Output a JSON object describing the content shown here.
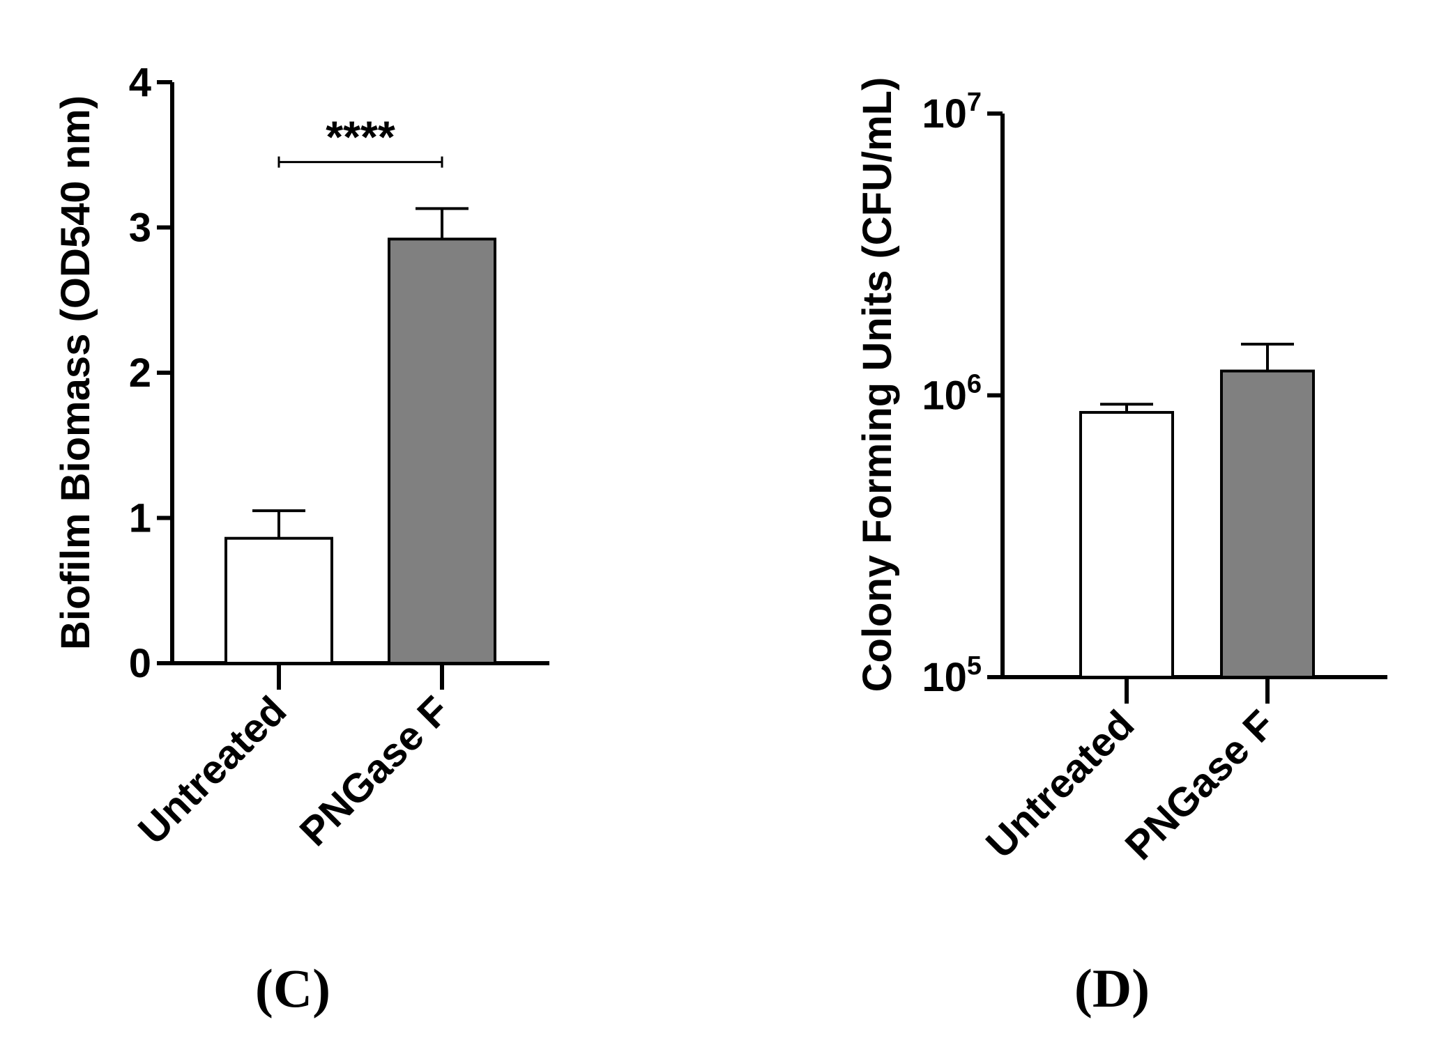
{
  "chart_data": [
    {
      "panel": "(C)",
      "type": "bar",
      "scale": "linear",
      "ylabel": "Biofilm  Biomass (OD540 nm)",
      "categories": [
        "Untreated",
        "PNGase F"
      ],
      "values": [
        0.86,
        2.92
      ],
      "errors": [
        0.19,
        0.21
      ],
      "colors": [
        "#ffffff",
        "#808080"
      ],
      "ylim": [
        0,
        4
      ],
      "yticks": [
        0,
        1,
        2,
        3,
        4
      ],
      "ytick_labels": [
        "0",
        "1",
        "2",
        "3",
        "4"
      ],
      "significance": {
        "label": "****",
        "between": [
          0,
          1
        ],
        "y": 3.45
      }
    },
    {
      "panel": "(D)",
      "type": "bar",
      "scale": "log",
      "ylabel": "Colony Forming Units (CFU/mL)",
      "categories": [
        "Untreated",
        "PNGase F"
      ],
      "values": [
        870000,
        1220000
      ],
      "errors": [
        60000,
        300000
      ],
      "colors": [
        "#ffffff",
        "#808080"
      ],
      "ylim": [
        100000,
        10000000
      ],
      "yticks": [
        100000,
        1000000,
        10000000
      ],
      "ytick_labels": [
        {
          "base": "10",
          "exp": "5"
        },
        {
          "base": "10",
          "exp": "6"
        },
        {
          "base": "10",
          "exp": "7"
        }
      ]
    }
  ]
}
